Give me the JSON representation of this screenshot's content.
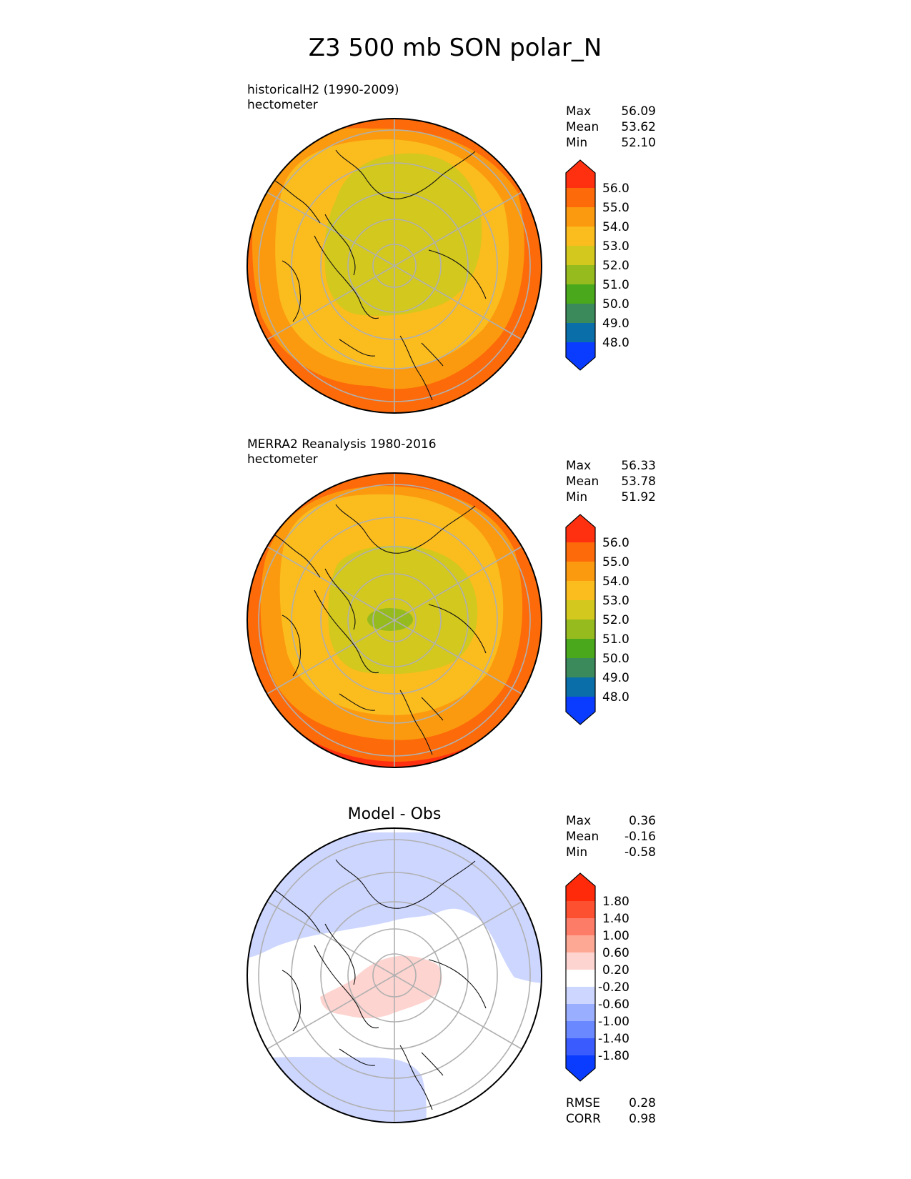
{
  "figure_title": "Z3 500 mb SON polar_N",
  "stat_labels": {
    "max": "Max",
    "mean": "Mean",
    "min": "Min",
    "rmse": "RMSE",
    "corr": "CORR"
  },
  "chart_data": [
    {
      "type": "heatmap",
      "projection": "north-polar-stereographic",
      "title": "historicalH2 (1990-2009)",
      "units": "hectometer",
      "stats": {
        "max": "56.09",
        "mean": "53.62",
        "min": "52.10"
      },
      "colorbar": {
        "ticks": [
          "48.0",
          "49.0",
          "50.0",
          "51.0",
          "52.0",
          "53.0",
          "54.0",
          "55.0",
          "56.0"
        ],
        "colors": [
          "#0a3cff",
          "#0a6ea8",
          "#3a8a5c",
          "#4aa81c",
          "#96bb1e",
          "#d2c81e",
          "#fbbc1e",
          "#fb9a0e",
          "#fd6a0a",
          "#ff3010"
        ],
        "extend": "both"
      },
      "field": {
        "pole_center": [
          0.0,
          0.0
        ],
        "pole_value": 52.3,
        "gradient": 0.18,
        "anisotropy": 0.2
      }
    },
    {
      "type": "heatmap",
      "projection": "north-polar-stereographic",
      "title": "MERRA2 Reanalysis 1980-2016",
      "units": "hectometer",
      "stats": {
        "max": "56.33",
        "mean": "53.78",
        "min": "51.92"
      },
      "colorbar": {
        "ticks": [
          "48.0",
          "49.0",
          "50.0",
          "51.0",
          "52.0",
          "53.0",
          "54.0",
          "55.0",
          "56.0"
        ],
        "colors": [
          "#0a3cff",
          "#0a6ea8",
          "#3a8a5c",
          "#4aa81c",
          "#96bb1e",
          "#d2c81e",
          "#fbbc1e",
          "#fb9a0e",
          "#fd6a0a",
          "#ff3010"
        ],
        "extend": "both"
      },
      "field": {
        "pole_center": [
          0.0,
          0.0
        ],
        "pole_value": 51.95,
        "gradient": 0.2,
        "anisotropy": 0.2
      }
    },
    {
      "type": "heatmap",
      "projection": "north-polar-stereographic",
      "title": "Model - Obs",
      "units": "",
      "stats": {
        "max": "0.36",
        "mean": "-0.16",
        "min": "-0.58",
        "rmse": "0.28",
        "corr": "0.98"
      },
      "colorbar": {
        "ticks": [
          "-1.80",
          "-1.40",
          "-1.00",
          "-0.60",
          "-0.20",
          "0.20",
          "0.60",
          "1.00",
          "1.40",
          "1.80"
        ],
        "colors": [
          "#0a3cff",
          "#3a5cff",
          "#6a88ff",
          "#9aaeff",
          "#cdd6ff",
          "#ffffff",
          "#fdd4d0",
          "#fda894",
          "#fd7c68",
          "#fd5030",
          "#ff2a0a"
        ],
        "extend": "both"
      },
      "field": {
        "regions": [
          "positive anomaly over central Arctic",
          "negative anomaly over North Pacific and North Atlantic rims"
        ]
      }
    }
  ]
}
